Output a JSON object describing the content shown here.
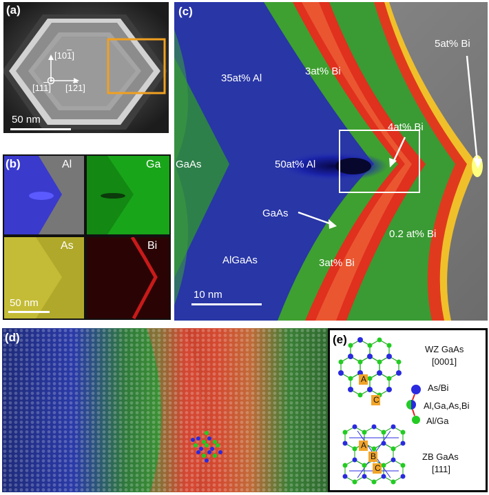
{
  "panel_a": {
    "label": "(a)",
    "dir_up_pre": "[10",
    "dir_up_bar": "1",
    "dir_up_post": "]",
    "dir_right_pre": "[1",
    "dir_right_bar": "2",
    "dir_right_post": "1]",
    "dir_origin_pre": "[11",
    "dir_origin_bar": "1",
    "dir_origin_post": "]",
    "scalebar": "50 nm"
  },
  "panel_b": {
    "label": "(b)",
    "maps": [
      "Al",
      "Ga",
      "As",
      "Bi"
    ],
    "scalebar": "50 nm"
  },
  "panel_c": {
    "label": "(c)",
    "annotations": {
      "al35": "35at% Al",
      "bi3_top": "3at% Bi",
      "bi5": "5at% Bi",
      "bi4": "4at% Bi",
      "gaas_left": "GaAs",
      "al50": "50at% Al",
      "gaas_mid": "GaAs",
      "bi02": "0.2 at% Bi",
      "algaas": "AlGaAs",
      "bi3_bottom": "3at% Bi"
    },
    "scalebar": "10 nm"
  },
  "panel_d": {
    "label": "(d)"
  },
  "panel_e": {
    "label": "(e)",
    "wz_title_1": "WZ GaAs",
    "wz_title_2": "[0001]",
    "zb_title_1": "ZB GaAs",
    "zb_title_2": "[111]",
    "legend_top": "As/Bi",
    "legend_mid": "Al,Ga,As,Bi",
    "legend_bottom": "Al/Ga",
    "stack_A": "A",
    "stack_B": "B",
    "stack_C": "C"
  },
  "colors": {
    "as_bi_blue": "#2a2ae0",
    "al_ga_green": "#22cc22",
    "stack_label_bg": "#f2a52a",
    "box_orange": "#f0a020"
  }
}
